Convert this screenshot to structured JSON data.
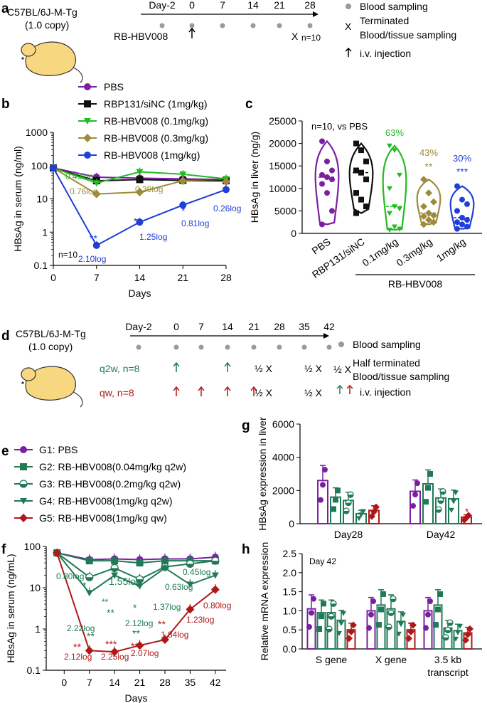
{
  "colors": {
    "purple": "#7b1fa2",
    "black": "#111111",
    "lgreen": "#22bb22",
    "olive": "#9c8b3a",
    "blue": "#1f3fd8",
    "dgreen": "#1f7a55",
    "red": "#b01818",
    "grey": "#9a9a9a"
  },
  "panels": {
    "a": "a",
    "b": "b",
    "c": "c",
    "d": "d",
    "e": "e",
    "f": "f",
    "g": "g",
    "h": "h"
  },
  "a": {
    "mouse_l1": "C57BL/6J-M-Tg",
    "mouse_l2": "(1.0 copy)",
    "days": [
      "Day-2",
      "0",
      "7",
      "14",
      "21",
      "28"
    ],
    "drug": "RB-HBV008",
    "n": "n=10",
    "xmark": "X",
    "legend": {
      "blood": "Blood sampling",
      "term1": "Terminated",
      "term2": "Blood/tissue sampling",
      "inj": "i.v. injection"
    }
  },
  "d": {
    "mouse_l1": "C57BL/6J-M-Tg",
    "mouse_l2": "(1.0 copy)",
    "days": [
      "Day-2",
      "0",
      "7",
      "14",
      "21",
      "28",
      "35",
      "42"
    ],
    "q2w": "q2w, n=8",
    "qw": "qw, n=8",
    "half": "½ X",
    "legend": {
      "blood": "Blood sampling",
      "half1": "Half  terminated",
      "half2": "Blood/tissue sampling",
      "inj": "i.v. injection",
      "halfx": "½ X"
    }
  },
  "chart_data": [
    {
      "id": "b",
      "type": "line",
      "xlabel": "Days",
      "ylabel": "HBsAg in serum (ng/ml)",
      "yscale": "log",
      "ylim": [
        0.1,
        1000
      ],
      "x": [
        0,
        7,
        14,
        21,
        28
      ],
      "series": [
        {
          "name": "PBS",
          "color": "purple",
          "marker": "circle",
          "values": [
            85,
            45,
            42,
            40,
            38
          ]
        },
        {
          "name": "RBP131/siNC (1mg/kg)",
          "color": "black",
          "marker": "square",
          "values": [
            85,
            35,
            38,
            36,
            35
          ]
        },
        {
          "name": "RB-HBV008 (0.1mg/kg)",
          "color": "lgreen",
          "marker": "tridown",
          "values": [
            85,
            30,
            65,
            55,
            40
          ]
        },
        {
          "name": "RB-HBV008 (0.3mg/kg)",
          "color": "olive",
          "marker": "diamond",
          "values": [
            85,
            14,
            16,
            35,
            33
          ]
        },
        {
          "name": "RB-HBV008 (1mg/kg)",
          "color": "blue",
          "marker": "circle",
          "values": [
            85,
            0.4,
            2,
            6.5,
            19
          ]
        }
      ],
      "annotations": [
        "0.49log",
        "*",
        "0.76log",
        "0.39log",
        "**",
        "2.10log",
        "**",
        "1.25log",
        "*",
        "0.81log",
        "0.26log"
      ],
      "n": "n=10"
    },
    {
      "id": "c",
      "type": "violin",
      "ylabel": "HBsAg in liver (ng/g)",
      "ylim": [
        0,
        25000
      ],
      "categories": [
        "PBS",
        "RBP131/siNC",
        "0.1mg/kg",
        "0.3mg/kg",
        "1mg/kg"
      ],
      "group_label": "RB-HBV008",
      "note": "n=10, vs PBS",
      "series": [
        {
          "name": "PBS",
          "color": "purple",
          "marker": "circle",
          "values": [
            20500,
            16000,
            14000,
            13000,
            12500,
            12000,
            11000,
            9000,
            5000,
            2000
          ]
        },
        {
          "name": "RBP131/siNC",
          "color": "black",
          "marker": "square",
          "values": [
            20000,
            18500,
            16000,
            14000,
            13500,
            12000,
            9000,
            7500,
            6000,
            4500
          ]
        },
        {
          "name": "0.1mg/kg",
          "color": "lgreen",
          "marker": "tridown",
          "values": [
            19500,
            18500,
            13000,
            10000,
            6000,
            5500,
            4500,
            1500,
            1000,
            800
          ]
        },
        {
          "name": "0.3mg/kg",
          "color": "olive",
          "marker": "diamond",
          "values": [
            12000,
            9000,
            7000,
            6000,
            4500,
            4000,
            3800,
            3000,
            2500,
            2000
          ]
        },
        {
          "name": "1mg/kg",
          "color": "blue",
          "marker": "circle",
          "values": [
            10500,
            7500,
            6500,
            5000,
            3500,
            3000,
            2500,
            2000,
            1500,
            1000
          ]
        }
      ],
      "percent_labels": [
        "63%",
        "43%",
        "30%"
      ],
      "sig_labels": [
        "**",
        "***"
      ]
    },
    {
      "id": "f",
      "type": "line",
      "xlabel": "Days",
      "ylabel": "HBsAg in serum (ng/mL)",
      "yscale": "log",
      "ylim": [
        0.1,
        100
      ],
      "x": [
        -2,
        7,
        14,
        21,
        28,
        35,
        42
      ],
      "series": [
        {
          "name": "G1: PBS",
          "color": "purple",
          "marker": "circle",
          "values": [
            70,
            48,
            50,
            48,
            50,
            50,
            55
          ]
        },
        {
          "name": "G2: RB-HBV008(0.04mg/kg q2w)",
          "color": "dgreen",
          "marker": "square",
          "values": [
            70,
            45,
            45,
            40,
            45,
            45,
            45
          ]
        },
        {
          "name": "G3: RB-HBV008(0.2mg/kg q2w)",
          "color": "dgreen",
          "marker": "halfcircle",
          "values": [
            70,
            18,
            30,
            16,
            32,
            38,
            45
          ]
        },
        {
          "name": "G4: RB-HBV008(1mg/kg q2w)",
          "color": "dgreen",
          "marker": "tridown",
          "values": [
            70,
            7.5,
            20,
            11,
            30,
            12,
            20
          ]
        },
        {
          "name": "G5: RB-HBV008(1mg/kg qw)",
          "color": "red",
          "marker": "diamond",
          "values": [
            70,
            0.3,
            0.28,
            0.4,
            0.55,
            3,
            9
          ]
        }
      ],
      "annotations_green": [
        "0.80log",
        "*",
        "1.55log",
        "**",
        "*",
        "2.12log",
        "**",
        "1.37log",
        "0.63log",
        "0.45log",
        "2.22log",
        "**"
      ],
      "annotations_red": [
        "**",
        "2.12log",
        "***",
        "2.25log",
        "**",
        "2.07log",
        "**",
        "1.84log",
        "1.23log",
        "0.80log"
      ]
    },
    {
      "id": "g",
      "type": "bar",
      "ylabel": "HBsAg expression in liver",
      "ylim": [
        0,
        6000
      ],
      "categories": [
        "Day28",
        "Day42"
      ],
      "series": [
        {
          "name": "G1",
          "color": "purple",
          "values": [
            2600,
            1950
          ]
        },
        {
          "name": "G2",
          "color": "dgreen",
          "values": [
            1600,
            2400
          ]
        },
        {
          "name": "G3",
          "color": "dgreen",
          "values": [
            1400,
            1550
          ]
        },
        {
          "name": "G4",
          "color": "dgreen",
          "values": [
            600,
            1500
          ]
        },
        {
          "name": "G5",
          "color": "red",
          "values": [
            800,
            400
          ]
        }
      ],
      "sig": "*"
    },
    {
      "id": "h",
      "type": "bar",
      "ylabel": "Relative mRNA expression",
      "ylim": [
        0,
        2.5
      ],
      "categories": [
        "S gene",
        "X gene",
        "3.5 kb transcript"
      ],
      "series": [
        {
          "name": "G1",
          "color": "purple",
          "values": [
            1.05,
            1.0,
            1.0
          ]
        },
        {
          "name": "G2",
          "color": "dgreen",
          "values": [
            0.95,
            1.15,
            1.15
          ]
        },
        {
          "name": "G3",
          "color": "dgreen",
          "values": [
            0.95,
            1.05,
            0.55
          ]
        },
        {
          "name": "G4",
          "color": "dgreen",
          "values": [
            0.75,
            0.72,
            0.48
          ]
        },
        {
          "name": "G5",
          "color": "red",
          "values": [
            0.5,
            0.5,
            0.42
          ]
        }
      ],
      "note": "Day 42",
      "sig": "*"
    }
  ],
  "tick_labels": {
    "b_y": [
      "0.1",
      "1",
      "10",
      "100",
      "1000"
    ],
    "b_x": [
      "0",
      "7",
      "14",
      "21",
      "28"
    ],
    "c_y": [
      "0",
      "5000",
      "10000",
      "15000",
      "20000",
      "25000"
    ],
    "f_y": [
      "0.1",
      "1",
      "10",
      "100"
    ],
    "f_x": [
      "0",
      "7",
      "14",
      "21",
      "28",
      "35",
      "42"
    ],
    "g_y": [
      "0",
      "2000",
      "4000",
      "6000"
    ],
    "h_y": [
      "0.0",
      "0.5",
      "1.0",
      "1.5",
      "2.0",
      "2.5"
    ]
  }
}
